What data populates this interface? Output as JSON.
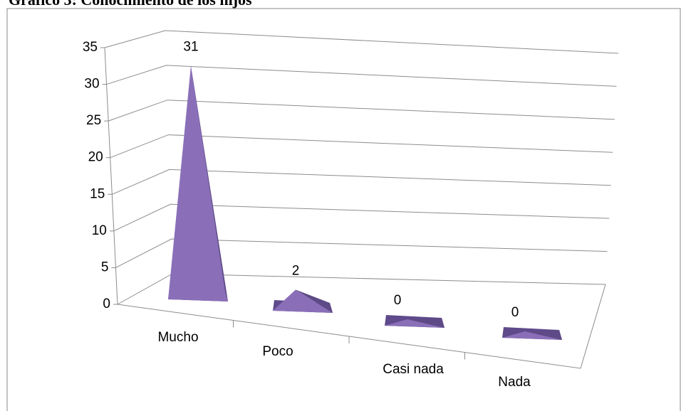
{
  "chart_data": {
    "type": "pyramid3d",
    "title": "Gráfico 3: Conocimiento de los hijos",
    "categories": [
      "Mucho",
      "Poco",
      "Casi nada",
      "Nada"
    ],
    "values": [
      31,
      2,
      0,
      0
    ],
    "color": "#8a6fb8",
    "ylim": [
      0,
      35
    ],
    "yticks": [
      0,
      5,
      10,
      15,
      20,
      25,
      30,
      35
    ],
    "grid": true
  }
}
